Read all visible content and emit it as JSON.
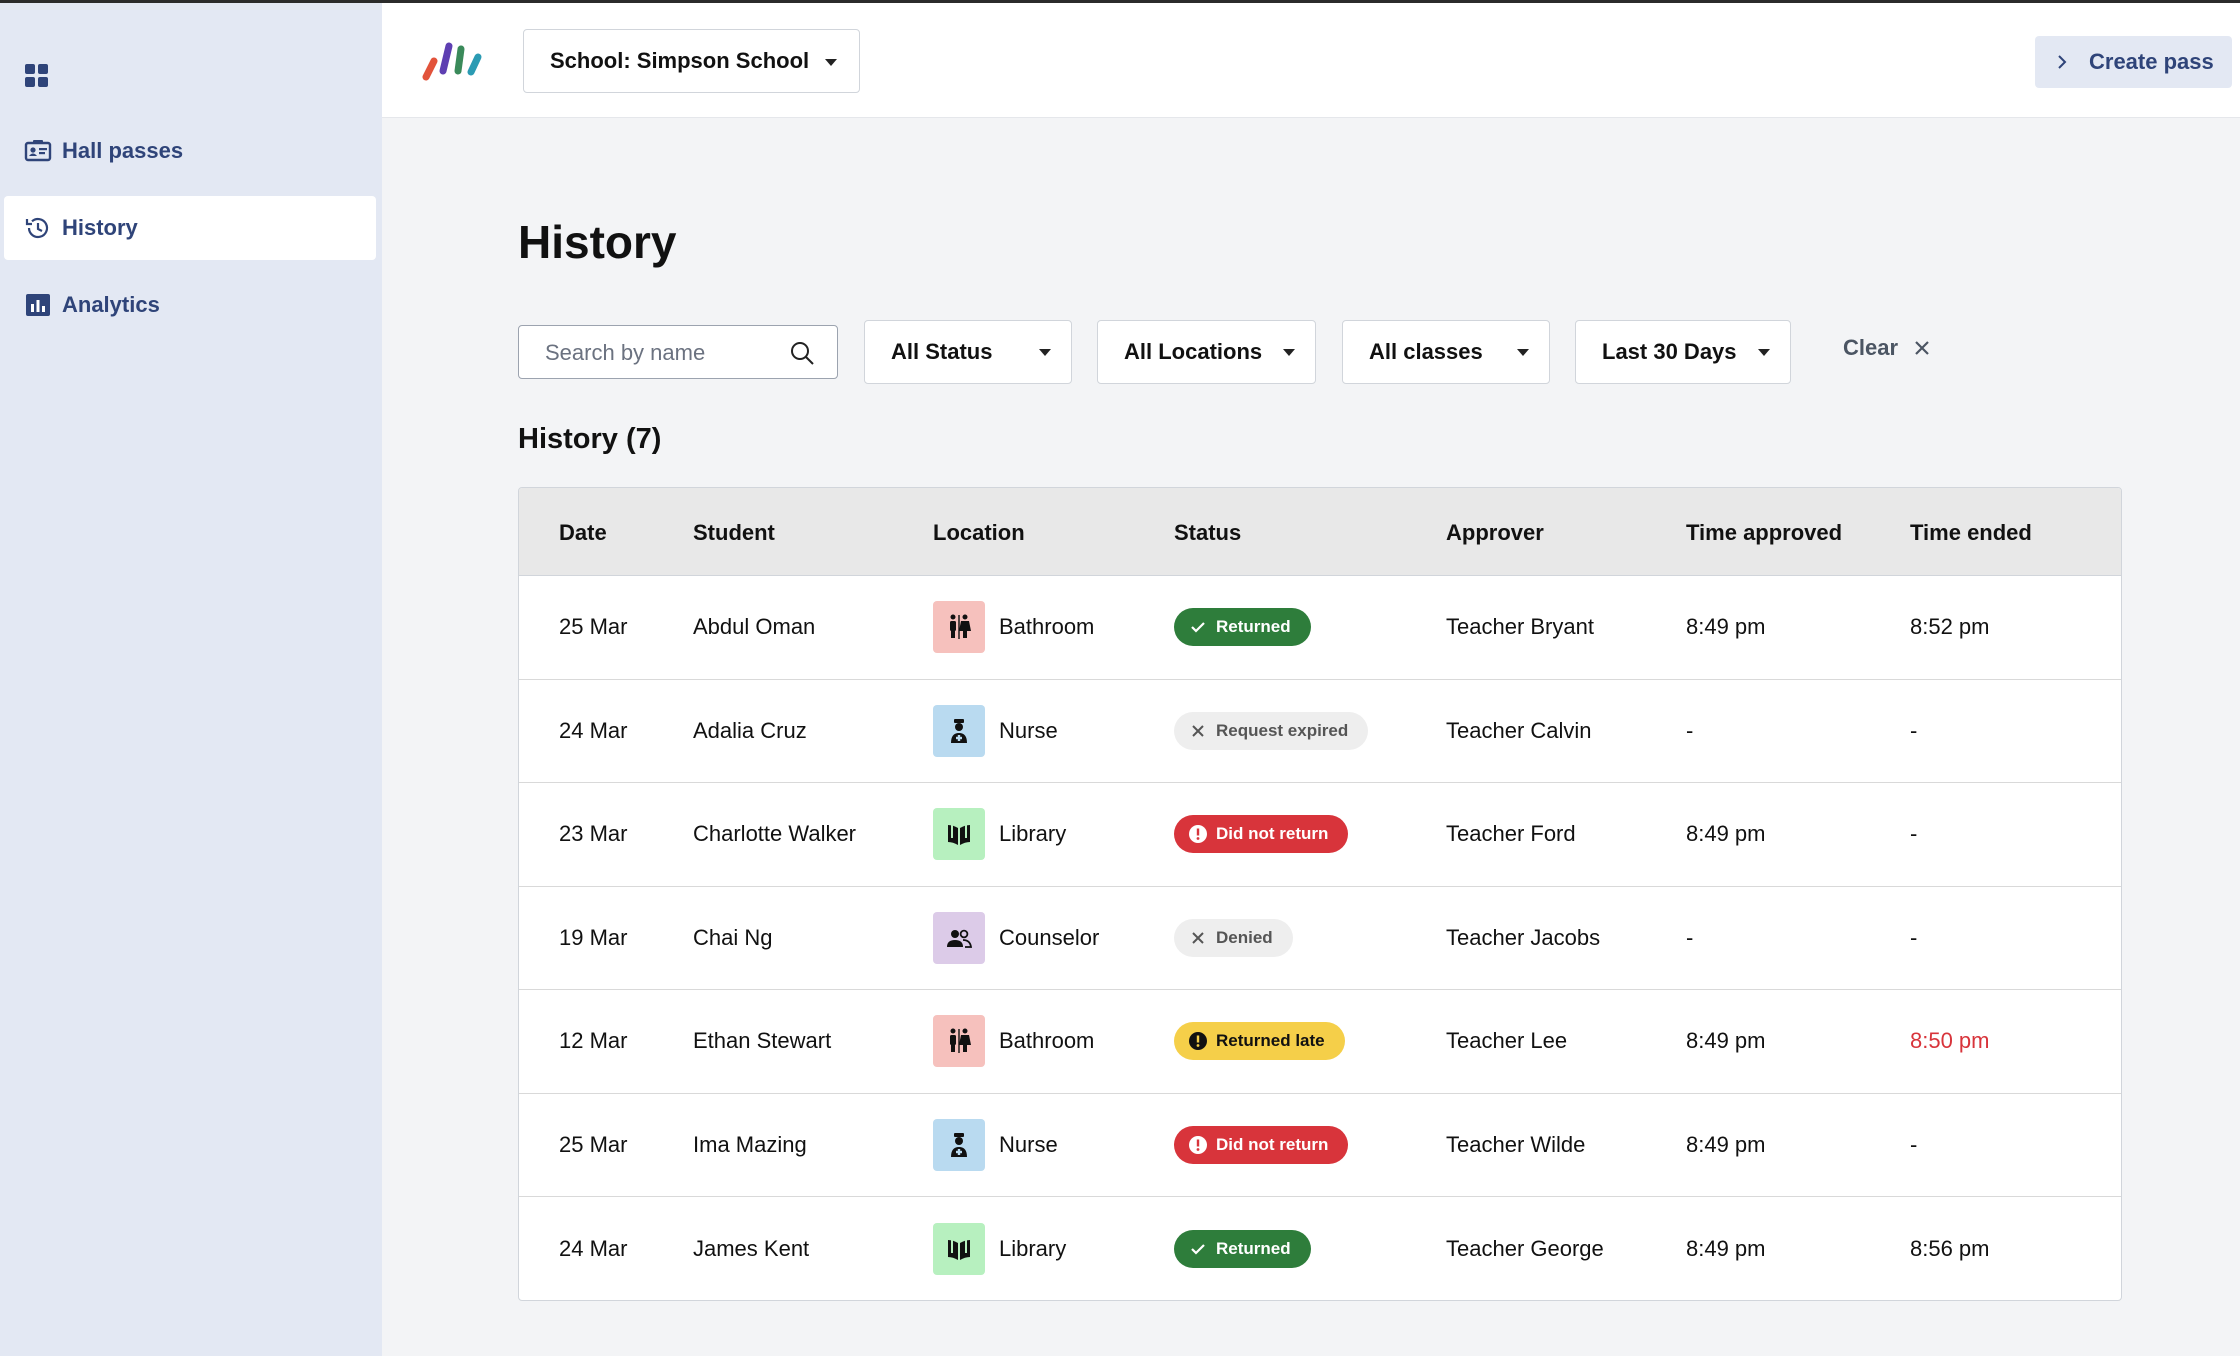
{
  "sidebar": {
    "items": [
      {
        "label": "Hall passes",
        "icon": "id-card-icon"
      },
      {
        "label": "History",
        "icon": "history-icon",
        "active": true
      },
      {
        "label": "Analytics",
        "icon": "bar-chart-icon"
      }
    ]
  },
  "topbar": {
    "school_label": "School: Simpson School",
    "create_pass_label": "Create pass"
  },
  "page": {
    "title": "History",
    "search_placeholder": "Search by name",
    "filters": {
      "status": "All Status",
      "locations": "All Locations",
      "classes": "All classes",
      "date_range": "Last 30 Days"
    },
    "clear_label": "Clear",
    "section_title": "History (7)"
  },
  "table": {
    "headers": {
      "date": "Date",
      "student": "Student",
      "location": "Location",
      "status": "Status",
      "approver": "Approver",
      "time_approved": "Time approved",
      "time_ended": "Time ended"
    },
    "rows": [
      {
        "date": "25 Mar",
        "student": "Abdul Oman",
        "location": "Bathroom",
        "status": "Returned",
        "approver": "Teacher Bryant",
        "time_approved": "8:49 pm",
        "time_ended": "8:52 pm"
      },
      {
        "date": "24 Mar",
        "student": "Adalia Cruz",
        "location": "Nurse",
        "status": "Request expired",
        "approver": "Teacher Calvin",
        "time_approved": "-",
        "time_ended": "-"
      },
      {
        "date": "23 Mar",
        "student": "Charlotte Walker",
        "location": "Library",
        "status": "Did not return",
        "approver": "Teacher Ford",
        "time_approved": "8:49 pm",
        "time_ended": "-"
      },
      {
        "date": "19 Mar",
        "student": "Chai Ng",
        "location": "Counselor",
        "status": "Denied",
        "approver": "Teacher Jacobs",
        "time_approved": "-",
        "time_ended": "-"
      },
      {
        "date": "12 Mar",
        "student": "Ethan Stewart",
        "location": "Bathroom",
        "status": "Returned late",
        "approver": "Teacher Lee",
        "time_approved": "8:49 pm",
        "time_ended": "8:50 pm"
      },
      {
        "date": "25 Mar",
        "student": "Ima Mazing",
        "location": "Nurse",
        "status": "Did not return",
        "approver": "Teacher Wilde",
        "time_approved": "8:49 pm",
        "time_ended": "-"
      },
      {
        "date": "24 Mar",
        "student": "James Kent",
        "location": "Library",
        "status": "Returned",
        "approver": "Teacher George",
        "time_approved": "8:49 pm",
        "time_ended": "8:56 pm"
      }
    ]
  },
  "colors": {
    "sidebar_bg": "#e3e8f3",
    "nav_text": "#2f4479",
    "returned": "#2e7d3b",
    "did_not_return": "#d8343b",
    "returned_late": "#f5cf49",
    "neutral_badge": "#eeeeee"
  }
}
